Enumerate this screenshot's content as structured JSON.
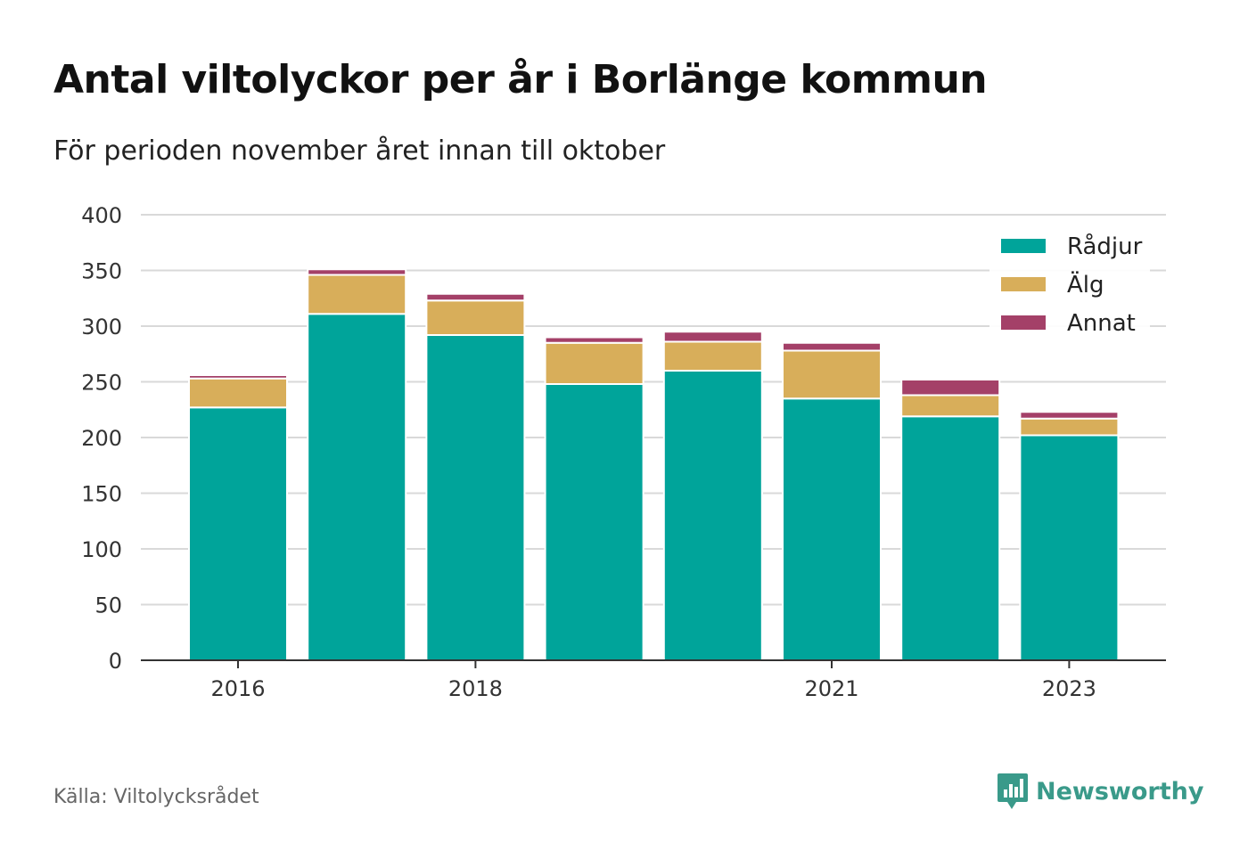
{
  "title": "Antal viltolyckor per år i Borlänge kommun",
  "subtitle": "För perioden november året innan till oktober",
  "source": "Källa: Viltolycksrådet",
  "brand": "Newsworthy",
  "colors": {
    "radjur": "#00a49a",
    "alg": "#d8ae5a",
    "annat": "#a44068",
    "grid": "#d9d9d9",
    "axis": "#333333",
    "brand": "#3a9a8a"
  },
  "chart_data": {
    "type": "bar",
    "stacked": true,
    "categories": [
      "2016",
      "2017",
      "2018",
      "2019",
      "2020",
      "2021",
      "2022",
      "2023"
    ],
    "x_tick_labels": [
      "2016",
      "",
      "2018",
      "",
      "",
      "2021",
      "",
      "2023"
    ],
    "series": [
      {
        "name": "Rådjur",
        "color": "#00a49a",
        "values": [
          227,
          311,
          292,
          248,
          260,
          235,
          219,
          202
        ]
      },
      {
        "name": "Älg",
        "color": "#d8ae5a",
        "values": [
          26,
          35,
          31,
          37,
          26,
          43,
          19,
          15
        ]
      },
      {
        "name": "Annat",
        "color": "#a44068",
        "values": [
          3,
          5,
          6,
          5,
          9,
          7,
          14,
          6
        ]
      }
    ],
    "ylim": [
      0,
      400
    ],
    "yticks": [
      0,
      50,
      100,
      150,
      200,
      250,
      300,
      350,
      400
    ],
    "grid": true,
    "legend_position": "top-right"
  }
}
